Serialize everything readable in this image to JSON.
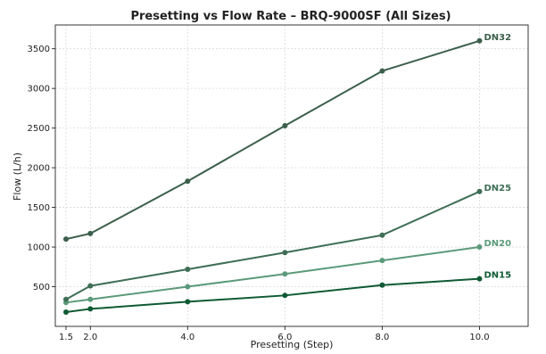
{
  "chart_data": {
    "type": "line",
    "title": "Presetting vs Flow Rate – BRQ-9000SF (All Sizes)",
    "xlabel": "Presetting (Step)",
    "ylabel": "Flow (L/h)",
    "x": [
      1.5,
      2.0,
      4.0,
      6.0,
      8.0,
      10.0
    ],
    "x_tick_labels": [
      "1.5",
      "2.0",
      "4.0",
      "6.0",
      "8.0",
      "10.0"
    ],
    "xlim": [
      1.28,
      11.0
    ],
    "ylim": [
      0,
      3800
    ],
    "y_ticks": [
      500,
      1000,
      1500,
      2000,
      2500,
      3000,
      3500
    ],
    "y_tick_labels": [
      "500",
      "1000",
      "1500",
      "2000",
      "2500",
      "3000",
      "3500"
    ],
    "grid": true,
    "legend": "none (series labeled at line ends)",
    "series": [
      {
        "name": "DN15",
        "color": "#0e5a32",
        "values": [
          180,
          220,
          310,
          390,
          520,
          600
        ]
      },
      {
        "name": "DN20",
        "color": "#5b9a7a",
        "values": [
          300,
          340,
          500,
          660,
          830,
          1000
        ]
      },
      {
        "name": "DN25",
        "color": "#3e6e55",
        "values": [
          340,
          510,
          720,
          930,
          1150,
          1700
        ]
      },
      {
        "name": "DN32",
        "color": "#3b5f4b",
        "values": [
          1100,
          1170,
          1830,
          2530,
          3220,
          3600
        ]
      }
    ]
  }
}
